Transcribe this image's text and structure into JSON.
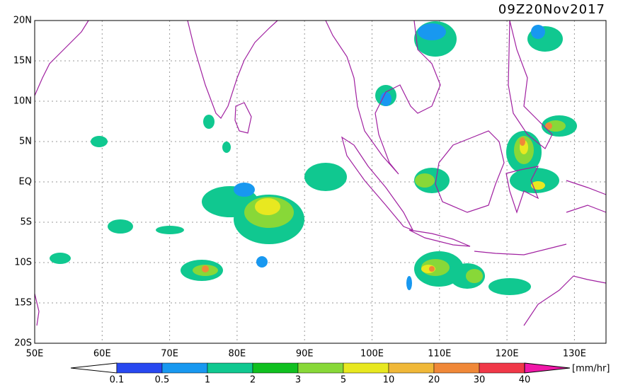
{
  "title": "09Z20Nov2017",
  "map": {
    "lat_labels": [
      "20N",
      "15N",
      "10N",
      "5N",
      "EQ",
      "5S",
      "10S",
      "15S",
      "20S"
    ],
    "lon_labels": [
      "50E",
      "60E",
      "70E",
      "80E",
      "90E",
      "100E",
      "110E",
      "120E",
      "130E"
    ]
  },
  "colorbar": {
    "labels": [
      "0.1",
      "0.5",
      "1",
      "2",
      "3",
      "5",
      "10",
      "20",
      "30",
      "40"
    ],
    "colors": [
      "#2848f0",
      "#1898f0",
      "#10c890",
      "#10c020",
      "#88d838",
      "#e8e820",
      "#f0b838",
      "#f08838",
      "#f03848"
    ],
    "unit": "[mm/hr]"
  }
}
